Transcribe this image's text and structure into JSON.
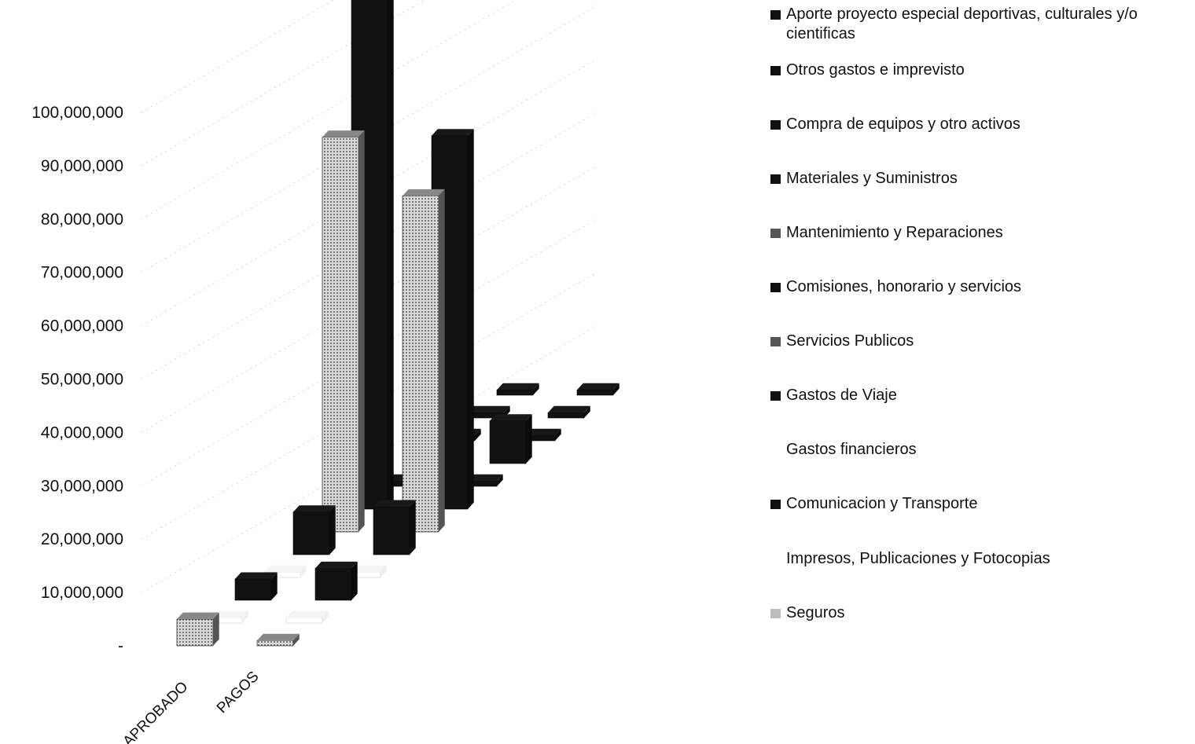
{
  "chart_data": {
    "type": "bar",
    "title": "",
    "xlabel": "",
    "ylabel": "",
    "ylim": [
      0,
      100000000
    ],
    "y_ticks": [
      "-",
      "10,000,000",
      "20,000,000",
      "30,000,000",
      "40,000,000",
      "50,000,000",
      "60,000,000",
      "70,000,000",
      "80,000,000",
      "90,000,000",
      "100,000,000"
    ],
    "categories": [
      "APROBADO",
      "PAGOS"
    ],
    "legend_position": "right",
    "series": [
      {
        "name": "Aporte proyecto especial deportivas, culturales y/o cientificas",
        "values": [
          1000000,
          1000000
        ],
        "color": "#111111"
      },
      {
        "name": "Otros gastos e imprevisto",
        "values": [
          1000000,
          1000000
        ],
        "color": "#111111"
      },
      {
        "name": "Compra de equipos y otro activos",
        "values": [
          1000000,
          1000000
        ],
        "color": "#111111"
      },
      {
        "name": "Materiales y Suministros",
        "values": [
          28000000,
          8000000
        ],
        "color": "#111111"
      },
      {
        "name": "Mantenimiento y Reparaciones",
        "values": [
          1000000,
          1000000
        ],
        "color": "#111111"
      },
      {
        "name": "Comisiones, honorario y servicios",
        "values": [
          97000000,
          70000000
        ],
        "color": "#111111"
      },
      {
        "name": "Servicios Publicos",
        "values": [
          74000000,
          63000000
        ],
        "color": "#3a3a3a"
      },
      {
        "name": "Gastos de Viaje",
        "values": [
          8000000,
          9000000
        ],
        "color": "#111111"
      },
      {
        "name": "Gastos financieros",
        "values": [
          1000000,
          1000000
        ],
        "color": "#ffffff"
      },
      {
        "name": "Comunicacion y Transporte",
        "values": [
          4000000,
          6000000
        ],
        "color": "#111111"
      },
      {
        "name": "Impresos, Publicaciones y Fotocopias",
        "values": [
          1000000,
          1000000
        ],
        "color": "#ffffff"
      },
      {
        "name": "Seguros",
        "values": [
          5000000,
          1000000
        ],
        "color": "#bdbdbd"
      }
    ]
  }
}
